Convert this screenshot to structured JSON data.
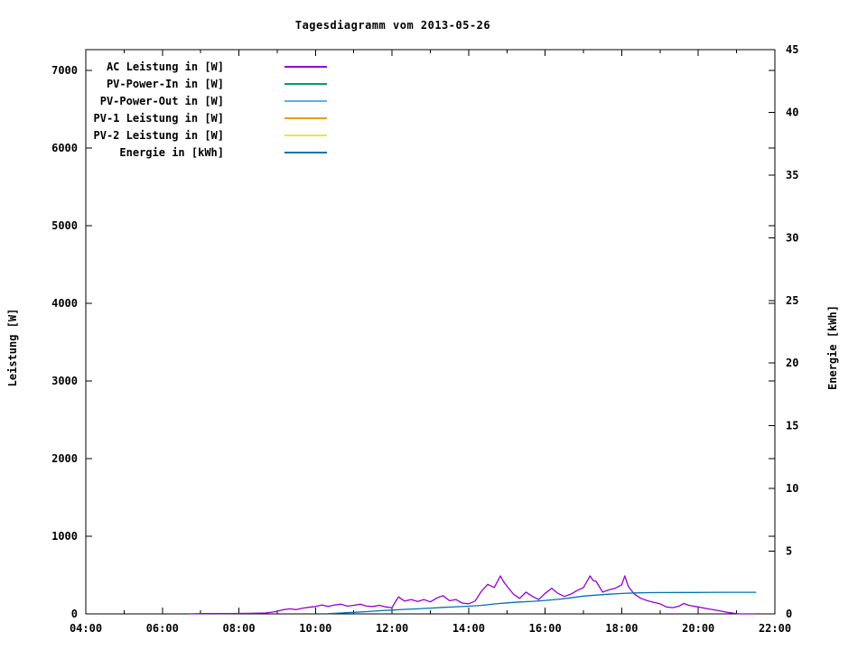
{
  "title": "Tagesdiagramm vom 2013-05-26",
  "chart_data": {
    "type": "line",
    "title": "Tagesdiagramm vom 2013-05-26",
    "grid": false,
    "legend_position": "top-left-inside",
    "frame_color": "#000000",
    "background_color": "#ffffff",
    "x_axis": {
      "label": "",
      "range_hours": [
        4,
        22
      ],
      "major_tick_hours": [
        4,
        6,
        8,
        10,
        12,
        14,
        16,
        18,
        20,
        22
      ],
      "tick_labels": [
        "04:00",
        "06:00",
        "08:00",
        "10:00",
        "12:00",
        "14:00",
        "16:00",
        "18:00",
        "20:00",
        "22:00"
      ],
      "minor_tick_hours": [
        5,
        7,
        9,
        11,
        13,
        15,
        17,
        19,
        21
      ]
    },
    "y_axis": {
      "label": "Leistung [W]",
      "ticks": [
        0,
        1000,
        2000,
        3000,
        4000,
        5000,
        6000,
        7000
      ],
      "lim": [
        0,
        7270
      ]
    },
    "y2_axis": {
      "label": "Energie [kWh]",
      "ticks": [
        0,
        5,
        10,
        15,
        20,
        25,
        30,
        35,
        40,
        45
      ],
      "lim": [
        0,
        45
      ]
    },
    "series": [
      {
        "name": "AC Leistung in [W]",
        "color": "#9400D3",
        "axis": "y1",
        "points": [
          [
            6.7,
            0
          ],
          [
            7.0,
            3
          ],
          [
            7.3,
            5
          ],
          [
            7.6,
            4
          ],
          [
            8.0,
            6
          ],
          [
            8.4,
            8
          ],
          [
            8.7,
            12
          ],
          [
            8.9,
            25
          ],
          [
            9.0,
            35
          ],
          [
            9.17,
            55
          ],
          [
            9.33,
            65
          ],
          [
            9.5,
            55
          ],
          [
            9.67,
            75
          ],
          [
            9.83,
            85
          ],
          [
            10.0,
            95
          ],
          [
            10.17,
            115
          ],
          [
            10.33,
            95
          ],
          [
            10.5,
            115
          ],
          [
            10.67,
            125
          ],
          [
            10.83,
            100
          ],
          [
            11.0,
            110
          ],
          [
            11.17,
            125
          ],
          [
            11.33,
            100
          ],
          [
            11.5,
            95
          ],
          [
            11.67,
            110
          ],
          [
            11.83,
            90
          ],
          [
            12.0,
            80
          ],
          [
            12.08,
            150
          ],
          [
            12.17,
            220
          ],
          [
            12.25,
            190
          ],
          [
            12.33,
            165
          ],
          [
            12.5,
            185
          ],
          [
            12.67,
            160
          ],
          [
            12.83,
            185
          ],
          [
            13.0,
            155
          ],
          [
            13.17,
            205
          ],
          [
            13.33,
            235
          ],
          [
            13.5,
            170
          ],
          [
            13.67,
            185
          ],
          [
            13.83,
            140
          ],
          [
            14.0,
            130
          ],
          [
            14.17,
            165
          ],
          [
            14.33,
            290
          ],
          [
            14.5,
            380
          ],
          [
            14.67,
            340
          ],
          [
            14.83,
            490
          ],
          [
            14.92,
            410
          ],
          [
            15.0,
            360
          ],
          [
            15.17,
            255
          ],
          [
            15.33,
            200
          ],
          [
            15.5,
            280
          ],
          [
            15.67,
            225
          ],
          [
            15.83,
            185
          ],
          [
            16.0,
            265
          ],
          [
            16.17,
            330
          ],
          [
            16.33,
            265
          ],
          [
            16.5,
            225
          ],
          [
            16.67,
            255
          ],
          [
            16.83,
            300
          ],
          [
            17.0,
            340
          ],
          [
            17.17,
            490
          ],
          [
            17.25,
            430
          ],
          [
            17.33,
            420
          ],
          [
            17.5,
            280
          ],
          [
            17.67,
            310
          ],
          [
            17.83,
            330
          ],
          [
            18.0,
            375
          ],
          [
            18.08,
            490
          ],
          [
            18.17,
            355
          ],
          [
            18.33,
            255
          ],
          [
            18.5,
            200
          ],
          [
            18.67,
            170
          ],
          [
            18.83,
            150
          ],
          [
            19.0,
            130
          ],
          [
            19.17,
            90
          ],
          [
            19.33,
            80
          ],
          [
            19.5,
            100
          ],
          [
            19.62,
            135
          ],
          [
            19.75,
            110
          ],
          [
            20.0,
            90
          ],
          [
            20.25,
            65
          ],
          [
            20.5,
            45
          ],
          [
            20.75,
            20
          ],
          [
            21.0,
            5
          ],
          [
            21.1,
            0
          ],
          [
            21.45,
            0
          ]
        ]
      },
      {
        "name": "PV-Power-In in [W]",
        "color": "#009E73",
        "axis": "y1",
        "points": []
      },
      {
        "name": "PV-Power-Out in [W]",
        "color": "#56B4E9",
        "axis": "y1",
        "points": []
      },
      {
        "name": "PV-1 Leistung in [W]",
        "color": "#E69F00",
        "axis": "y1",
        "points": []
      },
      {
        "name": "PV-2 Leistung in [W]",
        "color": "#F0E442",
        "axis": "y1",
        "points": []
      },
      {
        "name": "Energie in [kWh]",
        "color": "#0072B2",
        "axis": "y2",
        "points": [
          [
            10.33,
            0.03
          ],
          [
            10.67,
            0.07
          ],
          [
            11.0,
            0.12
          ],
          [
            11.33,
            0.18
          ],
          [
            11.67,
            0.25
          ],
          [
            12.0,
            0.3
          ],
          [
            12.33,
            0.36
          ],
          [
            12.67,
            0.4
          ],
          [
            13.0,
            0.46
          ],
          [
            13.33,
            0.52
          ],
          [
            13.67,
            0.57
          ],
          [
            14.0,
            0.61
          ],
          [
            14.33,
            0.68
          ],
          [
            14.67,
            0.79
          ],
          [
            15.0,
            0.88
          ],
          [
            15.33,
            0.95
          ],
          [
            15.67,
            1.0
          ],
          [
            16.0,
            1.07
          ],
          [
            16.33,
            1.16
          ],
          [
            16.67,
            1.28
          ],
          [
            17.0,
            1.42
          ],
          [
            17.33,
            1.5
          ],
          [
            17.67,
            1.57
          ],
          [
            18.0,
            1.63
          ],
          [
            18.33,
            1.67
          ],
          [
            18.67,
            1.69
          ],
          [
            19.0,
            1.7
          ],
          [
            19.8,
            1.71
          ],
          [
            20.6,
            1.72
          ],
          [
            21.5,
            1.72
          ]
        ]
      }
    ]
  }
}
